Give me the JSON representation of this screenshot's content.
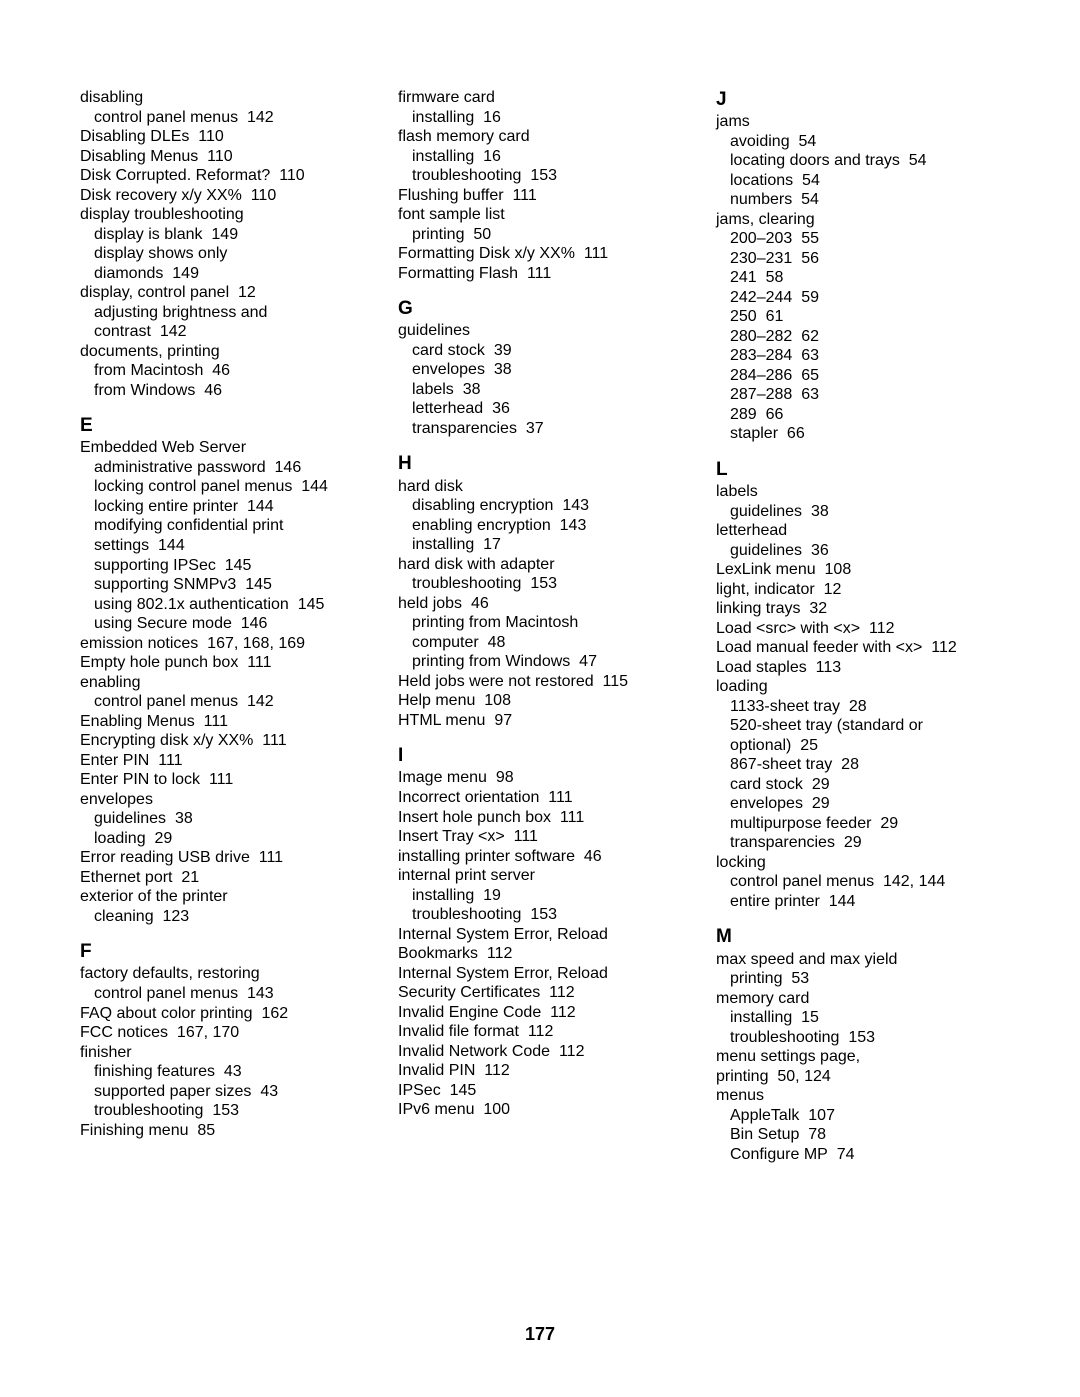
{
  "page_number": "177",
  "columns": [
    [
      {
        "t": "entry",
        "text": "disabling"
      },
      {
        "t": "sub",
        "text": "control panel menus",
        "pg": "142"
      },
      {
        "t": "entry",
        "text": "Disabling DLEs",
        "pg": "110"
      },
      {
        "t": "entry",
        "text": "Disabling Menus",
        "pg": "110"
      },
      {
        "t": "entry",
        "text": "Disk Corrupted. Reformat?",
        "pg": "110"
      },
      {
        "t": "entry",
        "text": "Disk recovery x/y XX%",
        "pg": "110"
      },
      {
        "t": "entry",
        "text": "display troubleshooting"
      },
      {
        "t": "sub",
        "text": "display is blank",
        "pg": "149"
      },
      {
        "t": "sub",
        "text": "display shows only"
      },
      {
        "t": "sub",
        "text": "diamonds",
        "pg": "149",
        "cont": true
      },
      {
        "t": "entry",
        "text": "display, control panel",
        "pg": "12"
      },
      {
        "t": "sub",
        "text": "adjusting brightness and"
      },
      {
        "t": "sub",
        "text": "contrast",
        "pg": "142",
        "cont": true
      },
      {
        "t": "entry",
        "text": "documents, printing"
      },
      {
        "t": "sub",
        "text": "from Macintosh",
        "pg": "46"
      },
      {
        "t": "sub",
        "text": "from Windows",
        "pg": "46"
      },
      {
        "t": "letter",
        "text": "E"
      },
      {
        "t": "entry",
        "text": "Embedded Web Server"
      },
      {
        "t": "sub",
        "text": "administrative password",
        "pg": "146"
      },
      {
        "t": "sub",
        "text": "locking control panel menus",
        "pg": "144"
      },
      {
        "t": "sub",
        "text": "locking entire printer",
        "pg": "144"
      },
      {
        "t": "sub",
        "text": "modifying confidential print"
      },
      {
        "t": "sub",
        "text": "settings",
        "pg": "144",
        "cont": true
      },
      {
        "t": "sub",
        "text": "supporting IPSec",
        "pg": "145"
      },
      {
        "t": "sub",
        "text": "supporting SNMPv3",
        "pg": "145"
      },
      {
        "t": "sub",
        "text": "using 802.1x authentication",
        "pg": "145"
      },
      {
        "t": "sub",
        "text": "using Secure mode",
        "pg": "146"
      },
      {
        "t": "entry",
        "text": "emission notices",
        "pg": "167, 168, 169"
      },
      {
        "t": "entry",
        "text": "Empty hole punch box",
        "pg": "111"
      },
      {
        "t": "entry",
        "text": "enabling"
      },
      {
        "t": "sub",
        "text": "control panel menus",
        "pg": "142"
      },
      {
        "t": "entry",
        "text": "Enabling Menus",
        "pg": "111"
      },
      {
        "t": "entry",
        "text": "Encrypting disk x/y XX%",
        "pg": "111"
      },
      {
        "t": "entry",
        "text": "Enter PIN",
        "pg": "111"
      },
      {
        "t": "entry",
        "text": "Enter PIN to lock",
        "pg": "111"
      },
      {
        "t": "entry",
        "text": "envelopes"
      },
      {
        "t": "sub",
        "text": "guidelines",
        "pg": "38"
      },
      {
        "t": "sub",
        "text": "loading",
        "pg": "29"
      },
      {
        "t": "entry",
        "text": "Error reading USB drive",
        "pg": "111"
      },
      {
        "t": "entry",
        "text": "Ethernet port",
        "pg": "21"
      },
      {
        "t": "entry",
        "text": "exterior of the printer"
      },
      {
        "t": "sub",
        "text": "cleaning",
        "pg": "123"
      },
      {
        "t": "letter",
        "text": "F"
      },
      {
        "t": "entry",
        "text": "factory defaults, restoring"
      },
      {
        "t": "sub",
        "text": "control panel menus",
        "pg": "143"
      },
      {
        "t": "entry",
        "text": "FAQ about color printing",
        "pg": "162"
      },
      {
        "t": "entry",
        "text": "FCC notices",
        "pg": "167, 170"
      },
      {
        "t": "entry",
        "text": "finisher"
      },
      {
        "t": "sub",
        "text": "finishing features",
        "pg": "43"
      },
      {
        "t": "sub",
        "text": "supported paper sizes",
        "pg": "43"
      },
      {
        "t": "sub",
        "text": "troubleshooting",
        "pg": "153"
      },
      {
        "t": "entry",
        "text": "Finishing menu",
        "pg": "85"
      }
    ],
    [
      {
        "t": "entry",
        "text": "firmware card"
      },
      {
        "t": "sub",
        "text": "installing",
        "pg": "16"
      },
      {
        "t": "entry",
        "text": "flash memory card"
      },
      {
        "t": "sub",
        "text": "installing",
        "pg": "16"
      },
      {
        "t": "sub",
        "text": "troubleshooting",
        "pg": "153"
      },
      {
        "t": "entry",
        "text": "Flushing buffer",
        "pg": "111"
      },
      {
        "t": "entry",
        "text": "font sample list"
      },
      {
        "t": "sub",
        "text": "printing",
        "pg": "50"
      },
      {
        "t": "entry",
        "text": "Formatting Disk x/y XX%",
        "pg": "111"
      },
      {
        "t": "entry",
        "text": "Formatting Flash",
        "pg": "111"
      },
      {
        "t": "letter",
        "text": "G"
      },
      {
        "t": "entry",
        "text": "guidelines"
      },
      {
        "t": "sub",
        "text": "card stock",
        "pg": "39"
      },
      {
        "t": "sub",
        "text": "envelopes",
        "pg": "38"
      },
      {
        "t": "sub",
        "text": "labels",
        "pg": "38"
      },
      {
        "t": "sub",
        "text": "letterhead",
        "pg": "36"
      },
      {
        "t": "sub",
        "text": "transparencies",
        "pg": "37"
      },
      {
        "t": "letter",
        "text": "H"
      },
      {
        "t": "entry",
        "text": "hard disk"
      },
      {
        "t": "sub",
        "text": "disabling encryption",
        "pg": "143"
      },
      {
        "t": "sub",
        "text": "enabling encryption",
        "pg": "143"
      },
      {
        "t": "sub",
        "text": "installing",
        "pg": "17"
      },
      {
        "t": "entry",
        "text": "hard disk with adapter"
      },
      {
        "t": "sub",
        "text": "troubleshooting",
        "pg": "153"
      },
      {
        "t": "entry",
        "text": "held jobs",
        "pg": "46"
      },
      {
        "t": "sub",
        "text": "printing from Macintosh"
      },
      {
        "t": "sub",
        "text": "computer",
        "pg": "48",
        "cont": true
      },
      {
        "t": "sub",
        "text": "printing from Windows",
        "pg": "47"
      },
      {
        "t": "entry",
        "text": "Held jobs were not restored",
        "pg": "115"
      },
      {
        "t": "entry",
        "text": "Help menu",
        "pg": "108"
      },
      {
        "t": "entry",
        "text": "HTML menu",
        "pg": "97"
      },
      {
        "t": "letter",
        "text": "I"
      },
      {
        "t": "entry",
        "text": "Image menu",
        "pg": "98"
      },
      {
        "t": "entry",
        "text": "Incorrect orientation",
        "pg": "111"
      },
      {
        "t": "entry",
        "text": "Insert hole punch box",
        "pg": "111"
      },
      {
        "t": "entry",
        "text": "Insert Tray <x>",
        "pg": "111"
      },
      {
        "t": "entry",
        "text": "installing printer software",
        "pg": "46"
      },
      {
        "t": "entry",
        "text": "internal print server"
      },
      {
        "t": "sub",
        "text": "installing",
        "pg": "19"
      },
      {
        "t": "sub",
        "text": "troubleshooting",
        "pg": "153"
      },
      {
        "t": "entry",
        "text": "Internal System Error, Reload"
      },
      {
        "t": "entry",
        "text": "Bookmarks",
        "pg": "112",
        "cont": true
      },
      {
        "t": "entry",
        "text": "Internal System Error, Reload"
      },
      {
        "t": "entry",
        "text": "Security Certificates",
        "pg": "112",
        "cont": true
      },
      {
        "t": "entry",
        "text": "Invalid Engine Code",
        "pg": "112"
      },
      {
        "t": "entry",
        "text": "Invalid file format",
        "pg": "112"
      },
      {
        "t": "entry",
        "text": "Invalid Network Code",
        "pg": "112"
      },
      {
        "t": "entry",
        "text": "Invalid PIN",
        "pg": "112"
      },
      {
        "t": "entry",
        "text": "IPSec",
        "pg": "145"
      },
      {
        "t": "entry",
        "text": "IPv6 menu",
        "pg": "100"
      }
    ],
    [
      {
        "t": "letter",
        "text": "J",
        "first": true
      },
      {
        "t": "entry",
        "text": "jams"
      },
      {
        "t": "sub",
        "text": "avoiding",
        "pg": "54"
      },
      {
        "t": "sub",
        "text": "locating doors and trays",
        "pg": "54"
      },
      {
        "t": "sub",
        "text": "locations",
        "pg": "54"
      },
      {
        "t": "sub",
        "text": "numbers",
        "pg": "54"
      },
      {
        "t": "entry",
        "text": "jams, clearing"
      },
      {
        "t": "sub",
        "text": "200–203",
        "pg": "55"
      },
      {
        "t": "sub",
        "text": "230–231",
        "pg": "56"
      },
      {
        "t": "sub",
        "text": "241",
        "pg": "58"
      },
      {
        "t": "sub",
        "text": "242–244",
        "pg": "59"
      },
      {
        "t": "sub",
        "text": "250",
        "pg": "61"
      },
      {
        "t": "sub",
        "text": "280–282",
        "pg": "62"
      },
      {
        "t": "sub",
        "text": "283–284",
        "pg": "63"
      },
      {
        "t": "sub",
        "text": "284–286",
        "pg": "65"
      },
      {
        "t": "sub",
        "text": "287–288",
        "pg": "63"
      },
      {
        "t": "sub",
        "text": "289",
        "pg": "66"
      },
      {
        "t": "sub",
        "text": "stapler",
        "pg": "66"
      },
      {
        "t": "letter",
        "text": "L"
      },
      {
        "t": "entry",
        "text": "labels"
      },
      {
        "t": "sub",
        "text": "guidelines",
        "pg": "38"
      },
      {
        "t": "entry",
        "text": "letterhead"
      },
      {
        "t": "sub",
        "text": "guidelines",
        "pg": "36"
      },
      {
        "t": "entry",
        "text": "LexLink menu",
        "pg": "108"
      },
      {
        "t": "entry",
        "text": "light, indicator",
        "pg": "12"
      },
      {
        "t": "entry",
        "text": "linking trays",
        "pg": "32"
      },
      {
        "t": "entry",
        "text": "Load <src> with <x>",
        "pg": "112"
      },
      {
        "t": "entry",
        "text": "Load manual feeder with <x>",
        "pg": "112"
      },
      {
        "t": "entry",
        "text": "Load staples",
        "pg": "113"
      },
      {
        "t": "entry",
        "text": "loading"
      },
      {
        "t": "sub",
        "text": "1133-sheet tray",
        "pg": "28"
      },
      {
        "t": "sub",
        "text": "520-sheet tray (standard or"
      },
      {
        "t": "sub",
        "text": "optional)",
        "pg": "25",
        "cont": true
      },
      {
        "t": "sub",
        "text": "867-sheet tray",
        "pg": "28"
      },
      {
        "t": "sub",
        "text": "card stock",
        "pg": "29"
      },
      {
        "t": "sub",
        "text": "envelopes",
        "pg": "29"
      },
      {
        "t": "sub",
        "text": "multipurpose feeder",
        "pg": "29"
      },
      {
        "t": "sub",
        "text": "transparencies",
        "pg": "29"
      },
      {
        "t": "entry",
        "text": "locking"
      },
      {
        "t": "sub",
        "text": "control panel menus",
        "pg": "142, 144"
      },
      {
        "t": "sub",
        "text": "entire printer",
        "pg": "144"
      },
      {
        "t": "letter",
        "text": "M"
      },
      {
        "t": "entry",
        "text": "max speed and max yield"
      },
      {
        "t": "sub",
        "text": "printing",
        "pg": "53"
      },
      {
        "t": "entry",
        "text": "memory card"
      },
      {
        "t": "sub",
        "text": "installing",
        "pg": "15"
      },
      {
        "t": "sub",
        "text": "troubleshooting",
        "pg": "153"
      },
      {
        "t": "entry",
        "text": "menu settings page,"
      },
      {
        "t": "entry",
        "text": "printing",
        "pg": "50, 124",
        "cont": true
      },
      {
        "t": "entry",
        "text": "menus"
      },
      {
        "t": "sub",
        "text": "AppleTalk",
        "pg": "107"
      },
      {
        "t": "sub",
        "text": "Bin Setup",
        "pg": "78"
      },
      {
        "t": "sub",
        "text": "Configure MP",
        "pg": "74"
      }
    ]
  ]
}
